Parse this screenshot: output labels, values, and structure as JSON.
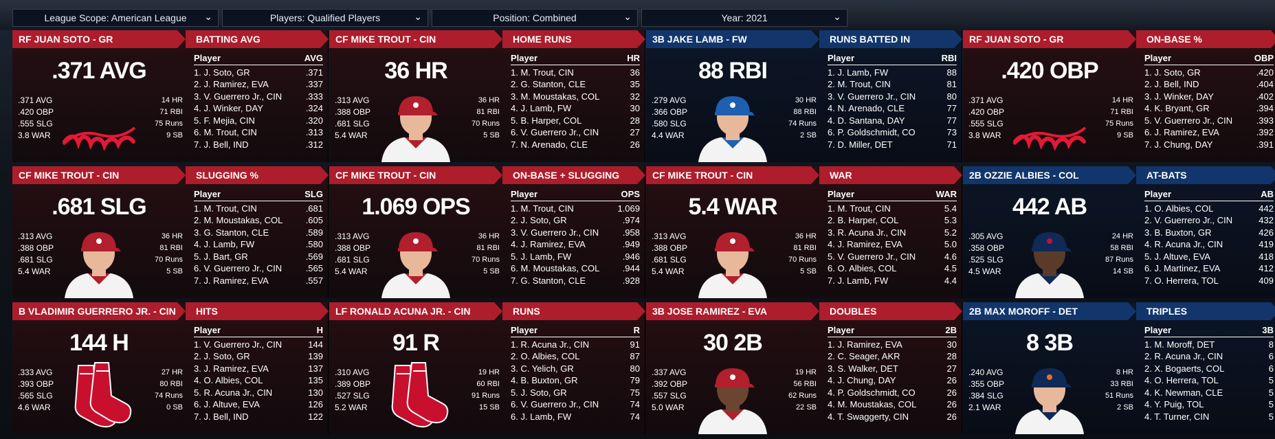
{
  "filters": [
    {
      "label": "League Scope: American League"
    },
    {
      "label": "Players: Qualified Players"
    },
    {
      "label": "Position: Combined"
    },
    {
      "label": "Year: 2021"
    }
  ],
  "cards": [
    {
      "color": "red",
      "player": "RF JUAN SOTO - GR",
      "category": "BATTING AVG",
      "big": ".371 AVG",
      "lines": [
        ".371 AVG",
        ".420 OBP",
        ".555 SLG",
        "3.8 WAR"
      ],
      "rlines": [
        "14 HR",
        "71 RBI",
        "75 Runs",
        "9 SB"
      ],
      "img": "logo-indians",
      "col": "AVG",
      "rows": [
        [
          "1. J. Soto, GR",
          ".371"
        ],
        [
          "2. J. Ramirez, EVA",
          ".337"
        ],
        [
          "3. V. Guerrero Jr., CIN",
          ".333"
        ],
        [
          "4. J. Winker, DAY",
          ".324"
        ],
        [
          "5. F. Mejia, CIN",
          ".320"
        ],
        [
          "6. M. Trout, CIN",
          ".313"
        ],
        [
          "7. J. Bell, IND",
          ".312"
        ]
      ]
    },
    {
      "color": "red",
      "player": "CF MIKE TROUT - CIN",
      "category": "HOME RUNS",
      "big": "36 HR",
      "lines": [
        ".313 AVG",
        ".388 OBP",
        ".681 SLG",
        "5.4 WAR"
      ],
      "rlines": [
        "36 HR",
        "81 RBI",
        "70 Runs",
        "5 SB"
      ],
      "img": "portrait-red",
      "col": "HR",
      "rows": [
        [
          "1. M. Trout, CIN",
          "36"
        ],
        [
          "2. G. Stanton, CLE",
          "35"
        ],
        [
          "3. M. Moustakas, COL",
          "32"
        ],
        [
          "4. J. Lamb, FW",
          "30"
        ],
        [
          "5. B. Harper, COL",
          "28"
        ],
        [
          "6. V. Guerrero Jr., CIN",
          "27"
        ],
        [
          "7. N. Arenado, CLE",
          "26"
        ]
      ]
    },
    {
      "color": "blue",
      "player": "3B JAKE LAMB - FW",
      "category": "RUNS BATTED IN",
      "big": "88 RBI",
      "lines": [
        ".279 AVG",
        ".366 OBP",
        ".580 SLG",
        "4.4 WAR"
      ],
      "rlines": [
        "30 HR",
        "88 RBI",
        "74 Runs",
        "2 SB"
      ],
      "img": "portrait-blue",
      "col": "RBI",
      "rows": [
        [
          "1. J. Lamb, FW",
          "88"
        ],
        [
          "2. M. Trout, CIN",
          "81"
        ],
        [
          "3. V. Guerrero Jr., CIN",
          "80"
        ],
        [
          "4. N. Arenado, CLE",
          "77"
        ],
        [
          "4. D. Santana, DAY",
          "77"
        ],
        [
          "6. P. Goldschmidt, CO",
          "73"
        ],
        [
          "7. D. Miller, DET",
          "71"
        ]
      ]
    },
    {
      "color": "red",
      "player": "RF JUAN SOTO - GR",
      "category": "ON-BASE %",
      "big": ".420 OBP",
      "lines": [
        ".371 AVG",
        ".420 OBP",
        ".555 SLG",
        "3.8 WAR"
      ],
      "rlines": [
        "14 HR",
        "71 RBI",
        "75 Runs",
        "9 SB"
      ],
      "img": "logo-indians",
      "col": "OBP",
      "rows": [
        [
          "1. J. Soto, GR",
          ".420"
        ],
        [
          "2. J. Bell, IND",
          ".404"
        ],
        [
          "3. J. Winker, DAY",
          ".402"
        ],
        [
          "4. K. Bryant, GR",
          ".394"
        ],
        [
          "5. V. Guerrero Jr., CIN",
          ".393"
        ],
        [
          "6. J. Ramirez, EVA",
          ".392"
        ],
        [
          "7. J. Chung, DAY",
          ".391"
        ]
      ]
    },
    {
      "color": "red",
      "player": "CF MIKE TROUT - CIN",
      "category": "SLUGGING %",
      "big": ".681 SLG",
      "lines": [
        ".313 AVG",
        ".388 OBP",
        ".681 SLG",
        "5.4 WAR"
      ],
      "rlines": [
        "36 HR",
        "81 RBI",
        "70 Runs",
        "5 SB"
      ],
      "img": "portrait-red",
      "col": "SLG",
      "rows": [
        [
          "1. M. Trout, CIN",
          ".681"
        ],
        [
          "2. M. Moustakas, COL",
          ".605"
        ],
        [
          "3. G. Stanton, CLE",
          ".589"
        ],
        [
          "4. J. Lamb, FW",
          ".580"
        ],
        [
          "5. J. Bart, GR",
          ".569"
        ],
        [
          "6. V. Guerrero Jr., CIN",
          ".565"
        ],
        [
          "7. J. Ramirez, EVA",
          ".557"
        ]
      ]
    },
    {
      "color": "red",
      "player": "CF MIKE TROUT - CIN",
      "category": "ON-BASE + SLUGGING",
      "big": "1.069 OPS",
      "lines": [
        ".313 AVG",
        ".388 OBP",
        ".681 SLG",
        "5.4 WAR"
      ],
      "rlines": [
        "36 HR",
        "81 RBI",
        "70 Runs",
        "5 SB"
      ],
      "img": "portrait-red",
      "col": "OPS",
      "rows": [
        [
          "1. M. Trout, CIN",
          "1.069"
        ],
        [
          "2. J. Soto, GR",
          ".974"
        ],
        [
          "3. V. Guerrero Jr., CIN",
          ".958"
        ],
        [
          "4. J. Ramirez, EVA",
          ".949"
        ],
        [
          "5. J. Lamb, FW",
          ".946"
        ],
        [
          "6. M. Moustakas, COL",
          ".944"
        ],
        [
          "7. G. Stanton, CLE",
          ".928"
        ]
      ]
    },
    {
      "color": "red",
      "player": "CF MIKE TROUT - CIN",
      "category": "WAR",
      "big": "5.4 WAR",
      "lines": [
        ".313 AVG",
        ".388 OBP",
        ".681 SLG",
        "5.4 WAR"
      ],
      "rlines": [
        "36 HR",
        "81 RBI",
        "70 Runs",
        "5 SB"
      ],
      "img": "portrait-red",
      "col": "WAR",
      "rows": [
        [
          "1. M. Trout, CIN",
          "5.4"
        ],
        [
          "2. B. Harper, COL",
          "5.3"
        ],
        [
          "3. R. Acuna Jr., CIN",
          "5.2"
        ],
        [
          "4. J. Ramirez, EVA",
          "5.0"
        ],
        [
          "5. V. Guerrero Jr., CIN",
          "4.6"
        ],
        [
          "6. O. Albies, COL",
          "4.5"
        ],
        [
          "7. J. Lamb, FW",
          "4.4"
        ]
      ]
    },
    {
      "color": "blue",
      "player": "2B OZZIE ALBIES - COL",
      "category": "AT-BATS",
      "big": "442 AB",
      "lines": [
        ".305 AVG",
        ".358 OBP",
        ".525 SLG",
        "4.5 WAR"
      ],
      "rlines": [
        "24 HR",
        "58 RBI",
        "87 Runs",
        "14 SB"
      ],
      "img": "portrait-dark",
      "col": "AB",
      "rows": [
        [
          "1. O. Albies, COL",
          "442"
        ],
        [
          "2. V. Guerrero Jr., CIN",
          "432"
        ],
        [
          "3. B. Buxton, GR",
          "426"
        ],
        [
          "4. R. Acuna Jr., CIN",
          "419"
        ],
        [
          "5. J. Altuve, EVA",
          "418"
        ],
        [
          "6. J. Martinez, EVA",
          "412"
        ],
        [
          "7. O. Herrera, TOL",
          "409"
        ]
      ]
    },
    {
      "color": "red",
      "player": "B VLADIMIR GUERRERO JR. - CIN",
      "category": "HITS",
      "big": "144 H",
      "lines": [
        ".333 AVG",
        ".393 OBP",
        ".565 SLG",
        "4.6 WAR"
      ],
      "rlines": [
        "27 HR",
        "80 RBI",
        "74 Runs",
        "0 SB"
      ],
      "img": "logo-sox",
      "col": "H",
      "rows": [
        [
          "1. V. Guerrero Jr., CIN",
          "144"
        ],
        [
          "2. J. Soto, GR",
          "139"
        ],
        [
          "3. J. Ramirez, EVA",
          "137"
        ],
        [
          "4. O. Albies, COL",
          "135"
        ],
        [
          "5. R. Acuna Jr., CIN",
          "130"
        ],
        [
          "6. J. Altuve, EVA",
          "126"
        ],
        [
          "7. J. Bell, IND",
          "122"
        ]
      ]
    },
    {
      "color": "red",
      "player": "LF RONALD ACUNA JR. - CIN",
      "category": "RUNS",
      "big": "91 R",
      "lines": [
        ".310 AVG",
        ".389 OBP",
        ".527 SLG",
        "5.2 WAR"
      ],
      "rlines": [
        "19 HR",
        "60 RBI",
        "91 Runs",
        "15 SB"
      ],
      "img": "logo-sox",
      "col": "R",
      "rows": [
        [
          "1. R. Acuna Jr., CIN",
          "91"
        ],
        [
          "2. O. Albies, COL",
          "87"
        ],
        [
          "3. C. Yelich, GR",
          "80"
        ],
        [
          "4. B. Buxton, GR",
          "79"
        ],
        [
          "5. J. Soto, GR",
          "75"
        ],
        [
          "6. V. Guerrero Jr., CIN",
          "74"
        ],
        [
          "6. J. Lamb, FW",
          "74"
        ]
      ]
    },
    {
      "color": "red",
      "player": "3B JOSE RAMIREZ - EVA",
      "category": "DOUBLES",
      "big": "30 2B",
      "lines": [
        ".337 AVG",
        ".392 OBP",
        ".557 SLG",
        "5.0 WAR"
      ],
      "rlines": [
        "19 HR",
        "56 RBI",
        "62 Runs",
        "22 SB"
      ],
      "img": "portrait-red-dark",
      "col": "2B",
      "rows": [
        [
          "1. J. Ramirez, EVA",
          "30"
        ],
        [
          "2. C. Seager, AKR",
          "28"
        ],
        [
          "3. S. Walker, DET",
          "27"
        ],
        [
          "4. J. Chung, DAY",
          "26"
        ],
        [
          "4. P. Goldschmidt, CO",
          "26"
        ],
        [
          "4. M. Moustakas, COL",
          "26"
        ],
        [
          "4. T. Swaggerty, CIN",
          "26"
        ]
      ]
    },
    {
      "color": "blue",
      "player": "2B MAX MOROFF - DET",
      "category": "TRIPLES",
      "big": "8 3B",
      "lines": [
        ".240 AVG",
        ".355 OBP",
        ".384 SLG",
        "2.1 WAR"
      ],
      "rlines": [
        "8 HR",
        "33 RBI",
        "51 Runs",
        "2 SB"
      ],
      "img": "portrait-navy",
      "col": "3B",
      "rows": [
        [
          "1. M. Moroff, DET",
          "8"
        ],
        [
          "2. R. Acuna Jr., CIN",
          "6"
        ],
        [
          "2. X. Bogaerts, COL",
          "6"
        ],
        [
          "4. O. Herrera, TOL",
          "5"
        ],
        [
          "4. K. Newman, CLE",
          "5"
        ],
        [
          "4. Y. Puig, TOL",
          "5"
        ],
        [
          "4. T. Turner, CIN",
          "5"
        ]
      ]
    }
  ]
}
